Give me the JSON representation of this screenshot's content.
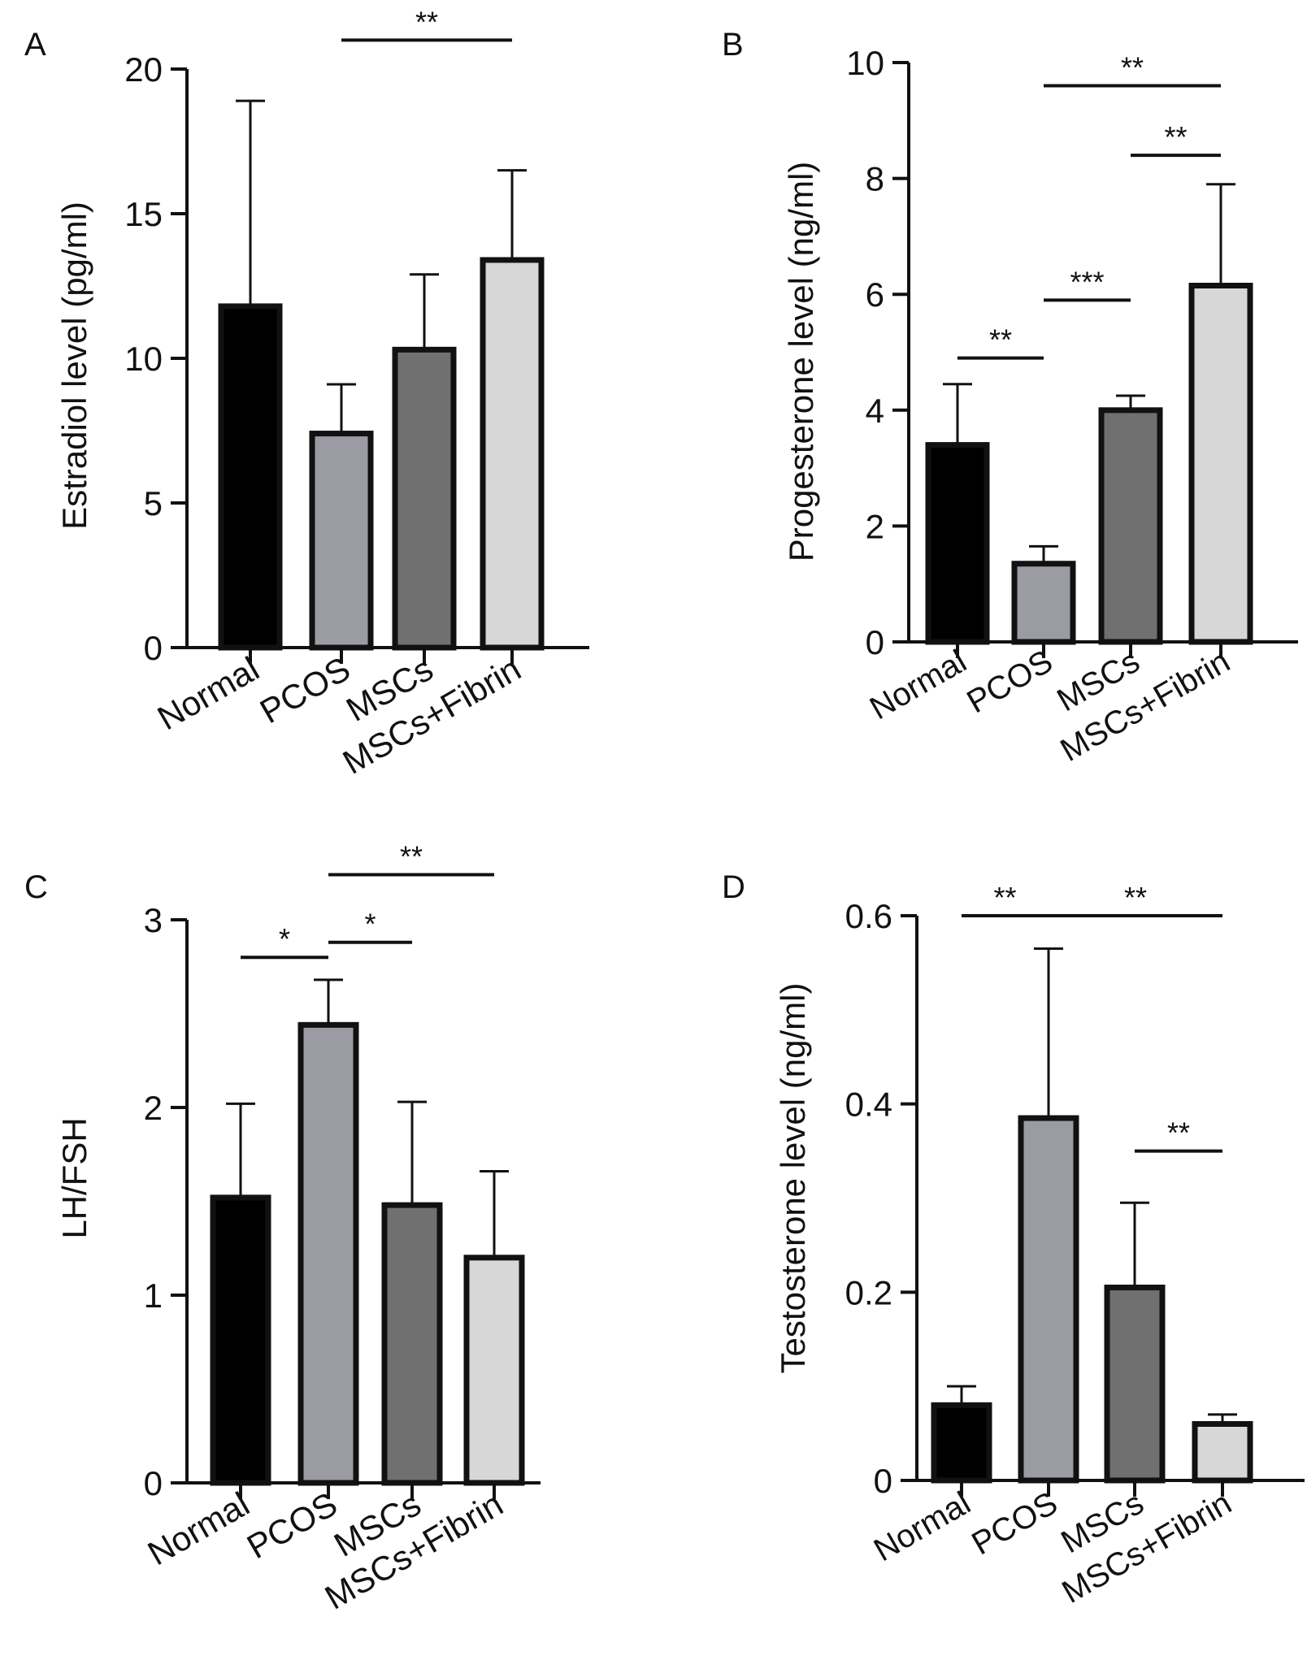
{
  "chart_data": [
    {
      "panel_label": "A",
      "type": "bar",
      "title": "",
      "xlabel": "",
      "ylabel": "Estradiol level (pg/ml)",
      "categories": [
        "Normal",
        "PCOS",
        "MSCs",
        "MSCs+Fibrin"
      ],
      "values": [
        11.8,
        7.4,
        10.3,
        13.4
      ],
      "errors": [
        7.1,
        1.7,
        2.6,
        3.1
      ],
      "colors": [
        "#000000",
        "#9b9ba3",
        "#707070",
        "#d7d7d7"
      ],
      "ylim": [
        0,
        20
      ],
      "yticks": [
        0,
        5,
        10,
        15,
        20
      ],
      "ytick_labels": [
        "0",
        "5",
        "10",
        "15",
        "20"
      ],
      "significance": [
        {
          "from": 1,
          "to": 3,
          "label": "**",
          "level": 21.0
        }
      ]
    },
    {
      "panel_label": "B",
      "type": "bar",
      "title": "",
      "xlabel": "",
      "ylabel": "Progesterone level (ng/ml)",
      "categories": [
        "Normal",
        "PCOS",
        "MSCs",
        "MSCs+Fibrin"
      ],
      "values": [
        3.4,
        1.35,
        4.0,
        6.15
      ],
      "errors": [
        1.05,
        0.3,
        0.25,
        1.75
      ],
      "colors": [
        "#000000",
        "#9b9ba3",
        "#707070",
        "#d7d7d7"
      ],
      "ylim": [
        0,
        10
      ],
      "yticks": [
        0,
        2,
        4,
        6,
        8,
        10
      ],
      "ytick_labels": [
        "0",
        "2",
        "4",
        "6",
        "8",
        "10"
      ],
      "significance": [
        {
          "from": 0,
          "to": 1,
          "label": "**",
          "level": 4.9
        },
        {
          "from": 1,
          "to": 2,
          "label": "***",
          "level": 5.9
        },
        {
          "from": 2,
          "to": 3,
          "label": "**",
          "level": 8.4
        },
        {
          "from": 1,
          "to": 3,
          "label": "**",
          "level": 9.6
        }
      ]
    },
    {
      "panel_label": "C",
      "type": "bar",
      "title": "",
      "xlabel": "",
      "ylabel": "LH/FSH",
      "categories": [
        "Normal",
        "PCOS",
        "MSCs",
        "MSCs+Fibrin"
      ],
      "values": [
        1.52,
        2.44,
        1.48,
        1.2
      ],
      "errors": [
        0.5,
        0.24,
        0.55,
        0.46
      ],
      "colors": [
        "#000000",
        "#9b9ba3",
        "#707070",
        "#d7d7d7"
      ],
      "ylim": [
        0,
        3
      ],
      "yticks": [
        0,
        1,
        2,
        3
      ],
      "ytick_labels": [
        "0",
        "1",
        "2",
        "3"
      ],
      "significance": [
        {
          "from": 0,
          "to": 1,
          "label": "*",
          "level": 2.8
        },
        {
          "from": 1,
          "to": 2,
          "label": "*",
          "level": 2.88
        },
        {
          "from": 1,
          "to": 3,
          "label": "**",
          "level": 3.24
        }
      ]
    },
    {
      "panel_label": "D",
      "type": "bar",
      "title": "",
      "xlabel": "",
      "ylabel": "Testosterone level (ng/ml)",
      "categories": [
        "Normal",
        "PCOS",
        "MSCs",
        "MSCs+Fibrin"
      ],
      "values": [
        0.08,
        0.385,
        0.205,
        0.06
      ],
      "errors": [
        0.02,
        0.18,
        0.09,
        0.01
      ],
      "colors": [
        "#000000",
        "#9b9ba3",
        "#707070",
        "#d7d7d7"
      ],
      "ylim": [
        0,
        0.6
      ],
      "yticks": [
        0,
        0.2,
        0.4,
        0.6
      ],
      "ytick_labels": [
        "0",
        "0.2",
        "0.4",
        "0.6"
      ],
      "significance": [
        {
          "from": 0,
          "to": 1,
          "label": "**",
          "level": 0.6
        },
        {
          "from": 1,
          "to": 3,
          "label": "**",
          "level": 0.6
        },
        {
          "from": 2,
          "to": 3,
          "label": "**",
          "level": 0.35
        }
      ]
    }
  ]
}
